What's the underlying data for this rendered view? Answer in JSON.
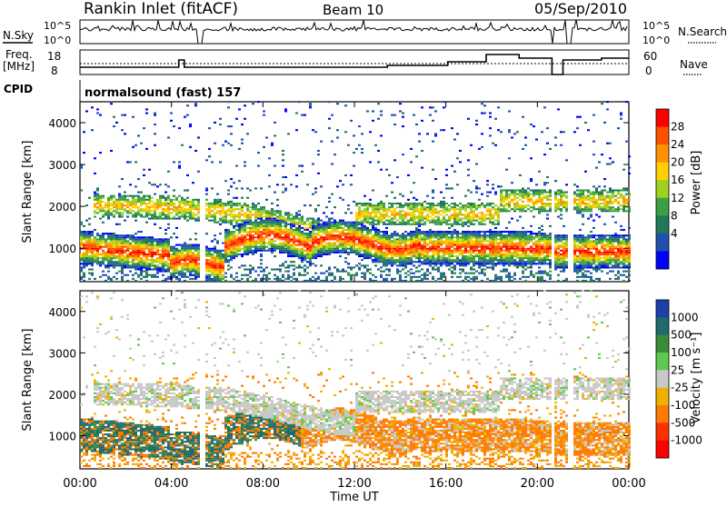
{
  "header": {
    "site": "Rankin Inlet (fitACF)",
    "beam": "Beam 10",
    "date": "05/Sep/2010"
  },
  "aux": {
    "nsky_label": "N.Sky",
    "nsky_ticks": [
      "10^5",
      "10^0"
    ],
    "nsearch_label": "N.Search",
    "nsearch_ticks": [
      "10^5",
      "10^0"
    ],
    "freq_label": [
      "Freq.",
      "[MHz]"
    ],
    "freq_ticks": [
      "18",
      "8"
    ],
    "nave_label": "Nave",
    "nave_ticks": [
      "60",
      "0"
    ],
    "cpid_label": "CPID",
    "cpid_value": "normalsound (fast) 157"
  },
  "chart_data": [
    {
      "type": "heatmap",
      "name": "power",
      "ylabel": "Slant Range [km]",
      "y_ticks": [
        "4000",
        "3000",
        "2000",
        "1000"
      ],
      "ylim": [
        200,
        4500
      ],
      "colorbar_label": "Power [dB]",
      "colorbar_ticks": [
        "28",
        "24",
        "20",
        "16",
        "12",
        "8",
        "4"
      ],
      "colorbar_colors": [
        "#ff0000",
        "#ff5000",
        "#ff9000",
        "#ffd000",
        "#a0d020",
        "#3ca040",
        "#207858",
        "#2050b0",
        "#0000ff"
      ]
    },
    {
      "type": "heatmap",
      "name": "velocity",
      "ylabel": "Slant Range [km]",
      "y_ticks": [
        "4000",
        "3000",
        "2000",
        "1000"
      ],
      "ylim": [
        200,
        4500
      ],
      "colorbar_label": "Velocity [m s⁻¹]",
      "colorbar_ticks": [
        "1000",
        "500",
        "100",
        "25",
        "-25",
        "-100",
        "-500",
        "-1000"
      ],
      "colorbar_colors": [
        "#1c3fa8",
        "#1f6a6a",
        "#3a8c3a",
        "#60c850",
        "#c8c8c8",
        "#f0b000",
        "#ff7a00",
        "#ff3000",
        "#ff0000"
      ]
    }
  ],
  "xaxis": {
    "label": "Time UT",
    "ticks": [
      "00:00",
      "04:00",
      "08:00",
      "12:00",
      "16:00",
      "20:00",
      "00:00"
    ]
  }
}
